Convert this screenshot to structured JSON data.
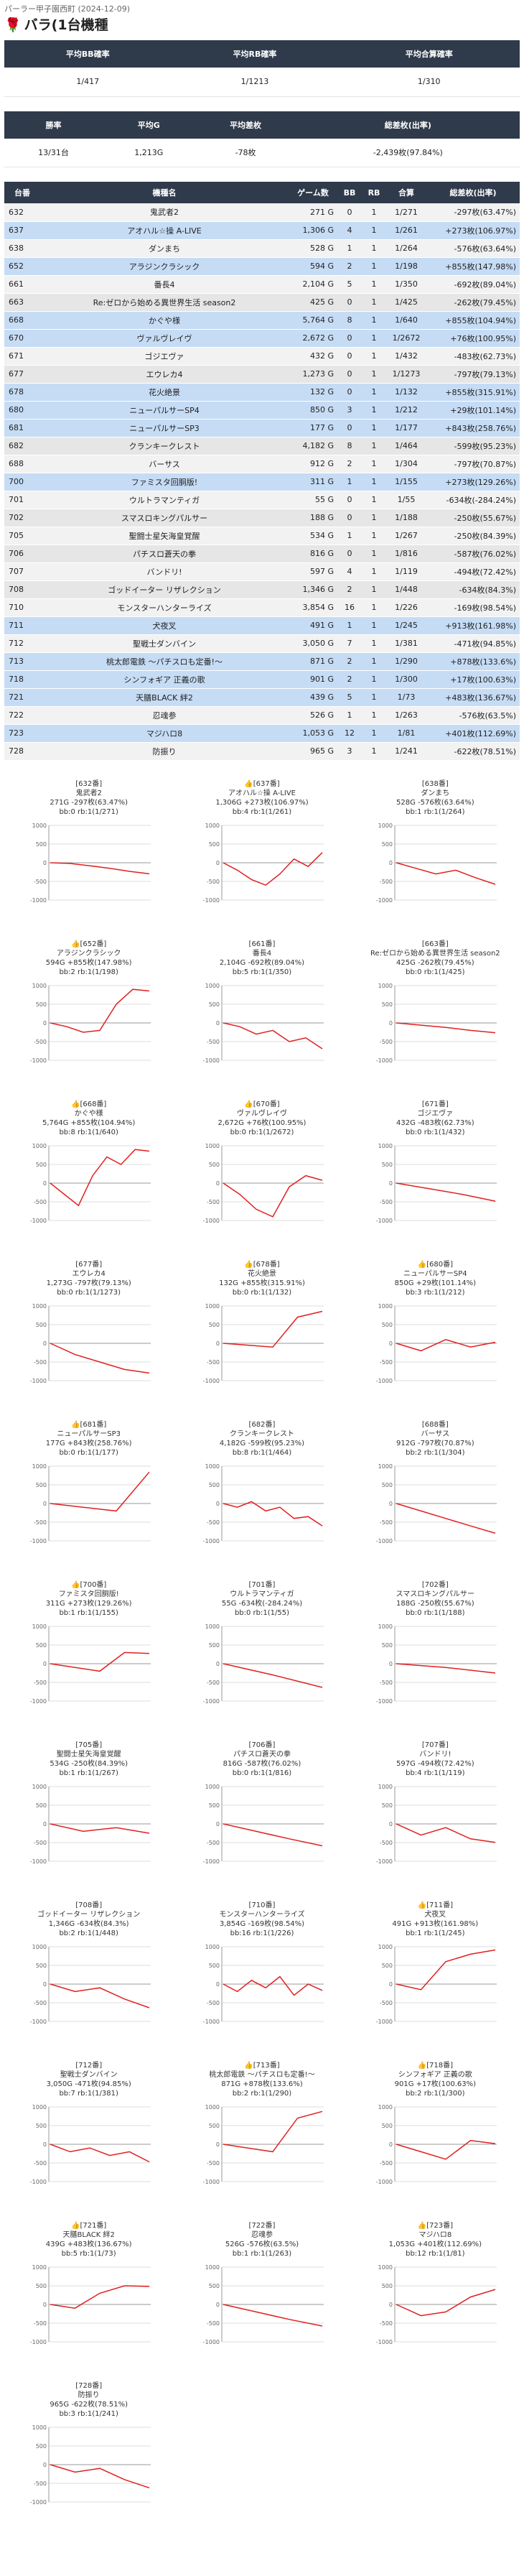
{
  "header": {
    "breadcrumb": "パーラー甲子園西町 (2024-12-09)",
    "title": "バラ(1台機種"
  },
  "summary1": {
    "headers": [
      "平均BB確率",
      "平均RB確率",
      "平均合算確率"
    ],
    "values": [
      "1/417",
      "1/1213",
      "1/310"
    ]
  },
  "summary2": {
    "headers": [
      "勝率",
      "平均G",
      "平均差枚",
      "総差枚(出率)"
    ],
    "values": [
      "13/31台",
      "1,213G",
      "-78枚",
      "-2,439枚(97.84%)"
    ]
  },
  "table": {
    "headers": [
      "台番",
      "機種名",
      "ゲーム数",
      "BB",
      "RB",
      "合算",
      "総差枚(出率)"
    ],
    "rows": [
      {
        "no": "632",
        "name": "鬼武者2",
        "games": "271 G",
        "bb": "0",
        "rb": "1",
        "prob": "1/271",
        "diff": "-297枚(63.47%)",
        "hl": false
      },
      {
        "no": "637",
        "name": "アオハル☆操 A-LIVE",
        "games": "1,306 G",
        "bb": "4",
        "rb": "1",
        "prob": "1/261",
        "diff": "+273枚(106.97%)",
        "hl": true
      },
      {
        "no": "638",
        "name": "ダンまち",
        "games": "528 G",
        "bb": "1",
        "rb": "1",
        "prob": "1/264",
        "diff": "-576枚(63.64%)",
        "hl": false
      },
      {
        "no": "652",
        "name": "アラジンクラシック",
        "games": "594 G",
        "bb": "2",
        "rb": "1",
        "prob": "1/198",
        "diff": "+855枚(147.98%)",
        "hl": true
      },
      {
        "no": "661",
        "name": "番長4",
        "games": "2,104 G",
        "bb": "5",
        "rb": "1",
        "prob": "1/350",
        "diff": "-692枚(89.04%)",
        "hl": false
      },
      {
        "no": "663",
        "name": "Re:ゼロから始める異世界生活 season2",
        "games": "425 G",
        "bb": "0",
        "rb": "1",
        "prob": "1/425",
        "diff": "-262枚(79.45%)",
        "hl": false
      },
      {
        "no": "668",
        "name": "かぐや様",
        "games": "5,764 G",
        "bb": "8",
        "rb": "1",
        "prob": "1/640",
        "diff": "+855枚(104.94%)",
        "hl": true
      },
      {
        "no": "670",
        "name": "ヴァルヴレイヴ",
        "games": "2,672 G",
        "bb": "0",
        "rb": "1",
        "prob": "1/2672",
        "diff": "+76枚(100.95%)",
        "hl": true
      },
      {
        "no": "671",
        "name": "ゴジエヴァ",
        "games": "432 G",
        "bb": "0",
        "rb": "1",
        "prob": "1/432",
        "diff": "-483枚(62.73%)",
        "hl": false
      },
      {
        "no": "677",
        "name": "エウレカ4",
        "games": "1,273 G",
        "bb": "0",
        "rb": "1",
        "prob": "1/1273",
        "diff": "-797枚(79.13%)",
        "hl": false
      },
      {
        "no": "678",
        "name": "花火絶景",
        "games": "132 G",
        "bb": "0",
        "rb": "1",
        "prob": "1/132",
        "diff": "+855枚(315.91%)",
        "hl": true
      },
      {
        "no": "680",
        "name": "ニューパルサーSP4",
        "games": "850 G",
        "bb": "3",
        "rb": "1",
        "prob": "1/212",
        "diff": "+29枚(101.14%)",
        "hl": true
      },
      {
        "no": "681",
        "name": "ニューパルサーSP3",
        "games": "177 G",
        "bb": "0",
        "rb": "1",
        "prob": "1/177",
        "diff": "+843枚(258.76%)",
        "hl": true
      },
      {
        "no": "682",
        "name": "クランキークレスト",
        "games": "4,182 G",
        "bb": "8",
        "rb": "1",
        "prob": "1/464",
        "diff": "-599枚(95.23%)",
        "hl": false
      },
      {
        "no": "688",
        "name": "バーサス",
        "games": "912 G",
        "bb": "2",
        "rb": "1",
        "prob": "1/304",
        "diff": "-797枚(70.87%)",
        "hl": false
      },
      {
        "no": "700",
        "name": "ファミスタ回胴版!",
        "games": "311 G",
        "bb": "1",
        "rb": "1",
        "prob": "1/155",
        "diff": "+273枚(129.26%)",
        "hl": true
      },
      {
        "no": "701",
        "name": "ウルトラマンティガ",
        "games": "55 G",
        "bb": "0",
        "rb": "1",
        "prob": "1/55",
        "diff": "-634枚(-284.24%)",
        "hl": false
      },
      {
        "no": "702",
        "name": "スマスロキングパルサー",
        "games": "188 G",
        "bb": "0",
        "rb": "1",
        "prob": "1/188",
        "diff": "-250枚(55.67%)",
        "hl": false
      },
      {
        "no": "705",
        "name": "聖闘士星矢海皇覚醒",
        "games": "534 G",
        "bb": "1",
        "rb": "1",
        "prob": "1/267",
        "diff": "-250枚(84.39%)",
        "hl": false
      },
      {
        "no": "706",
        "name": "パチスロ蒼天の拳",
        "games": "816 G",
        "bb": "0",
        "rb": "1",
        "prob": "1/816",
        "diff": "-587枚(76.02%)",
        "hl": false
      },
      {
        "no": "707",
        "name": "バンドリ!",
        "games": "597 G",
        "bb": "4",
        "rb": "1",
        "prob": "1/119",
        "diff": "-494枚(72.42%)",
        "hl": false
      },
      {
        "no": "708",
        "name": "ゴッドイーター リザレクション",
        "games": "1,346 G",
        "bb": "2",
        "rb": "1",
        "prob": "1/448",
        "diff": "-634枚(84.3%)",
        "hl": false
      },
      {
        "no": "710",
        "name": "モンスターハンターライズ",
        "games": "3,854 G",
        "bb": "16",
        "rb": "1",
        "prob": "1/226",
        "diff": "-169枚(98.54%)",
        "hl": false
      },
      {
        "no": "711",
        "name": "犬夜叉",
        "games": "491 G",
        "bb": "1",
        "rb": "1",
        "prob": "1/245",
        "diff": "+913枚(161.98%)",
        "hl": true
      },
      {
        "no": "712",
        "name": "聖戦士ダンバイン",
        "games": "3,050 G",
        "bb": "7",
        "rb": "1",
        "prob": "1/381",
        "diff": "-471枚(94.85%)",
        "hl": false
      },
      {
        "no": "713",
        "name": "桃太郎電鉄 〜パチスロも定番!〜",
        "games": "871 G",
        "bb": "2",
        "rb": "1",
        "prob": "1/290",
        "diff": "+878枚(133.6%)",
        "hl": true
      },
      {
        "no": "718",
        "name": "シンフォギア 正義の歌",
        "games": "901 G",
        "bb": "2",
        "rb": "1",
        "prob": "1/300",
        "diff": "+17枚(100.63%)",
        "hl": true
      },
      {
        "no": "721",
        "name": "天膳BLACK 絆2",
        "games": "439 G",
        "bb": "5",
        "rb": "1",
        "prob": "1/73",
        "diff": "+483枚(136.67%)",
        "hl": true
      },
      {
        "no": "722",
        "name": "忍魂参",
        "games": "526 G",
        "bb": "1",
        "rb": "1",
        "prob": "1/263",
        "diff": "-576枚(63.5%)",
        "hl": false
      },
      {
        "no": "723",
        "name": "マジハロ8",
        "games": "1,053 G",
        "bb": "12",
        "rb": "1",
        "prob": "1/81",
        "diff": "+401枚(112.69%)",
        "hl": true
      },
      {
        "no": "728",
        "name": "防振り",
        "games": "965 G",
        "bb": "3",
        "rb": "1",
        "prob": "1/241",
        "diff": "-622枚(78.51%)",
        "hl": false
      }
    ]
  },
  "cards": [
    {
      "head": "[632番]",
      "name": "鬼武者2",
      "stats": "271G -297枚(63.47%)",
      "bb": "bb:0 rb:1(1/271)",
      "plus": false,
      "pts": [
        0,
        -20,
        -80,
        -150,
        -230,
        -297
      ]
    },
    {
      "head": "[637番]",
      "name": "アオハル☆操 A-LIVE",
      "stats": "1,306G +273枚(106.97%)",
      "bb": "bb:4 rb:1(1/261)",
      "plus": true,
      "pts": [
        0,
        -200,
        -450,
        -600,
        -300,
        100,
        -100,
        273
      ]
    },
    {
      "head": "[638番]",
      "name": "ダンまち",
      "stats": "528G -576枚(63.64%)",
      "bb": "bb:1 rb:1(1/264)",
      "plus": false,
      "pts": [
        0,
        -150,
        -300,
        -200,
        -400,
        -576
      ]
    },
    {
      "head": "[652番]",
      "name": "アラジンクラシック",
      "stats": "594G +855枚(147.98%)",
      "bb": "bb:2 rb:1(1/198)",
      "plus": true,
      "pts": [
        0,
        -100,
        -250,
        -200,
        500,
        900,
        855
      ]
    },
    {
      "head": "[661番]",
      "name": "番長4",
      "stats": "2,104G -692枚(89.04%)",
      "bb": "bb:5 rb:1(1/350)",
      "plus": false,
      "pts": [
        0,
        -100,
        -300,
        -200,
        -500,
        -400,
        -692
      ]
    },
    {
      "head": "[663番]",
      "name": "Re:ゼロから始める異世界生活 season2",
      "stats": "425G -262枚(79.45%)",
      "bb": "bb:0 rb:1(1/425)",
      "plus": false,
      "pts": [
        0,
        -60,
        -120,
        -200,
        -262
      ]
    },
    {
      "head": "[668番]",
      "name": "かぐや様",
      "stats": "5,764G +855枚(104.94%)",
      "bb": "bb:8 rb:1(1/640)",
      "plus": true,
      "pts": [
        0,
        -300,
        -600,
        200,
        700,
        500,
        900,
        855
      ]
    },
    {
      "head": "[670番]",
      "name": "ヴァルヴレイヴ",
      "stats": "2,672G +76枚(100.95%)",
      "bb": "bb:0 rb:1(1/2672)",
      "plus": true,
      "pts": [
        0,
        -300,
        -700,
        -900,
        -100,
        200,
        76
      ]
    },
    {
      "head": "[671番]",
      "name": "ゴジエヴァ",
      "stats": "432G -483枚(62.73%)",
      "bb": "bb:0 rb:1(1/432)",
      "plus": false,
      "pts": [
        0,
        -150,
        -300,
        -483
      ]
    },
    {
      "head": "[677番]",
      "name": "エウレカ4",
      "stats": "1,273G -797枚(79.13%)",
      "bb": "bb:0 rb:1(1/1273)",
      "plus": false,
      "pts": [
        0,
        -300,
        -500,
        -700,
        -797
      ]
    },
    {
      "head": "[678番]",
      "name": "花火絶景",
      "stats": "132G +855枚(315.91%)",
      "bb": "bb:0 rb:1(1/132)",
      "plus": true,
      "pts": [
        0,
        -50,
        -100,
        700,
        855
      ]
    },
    {
      "head": "[680番]",
      "name": "ニューパルサーSP4",
      "stats": "850G +29枚(101.14%)",
      "bb": "bb:3 rb:1(1/212)",
      "plus": true,
      "pts": [
        0,
        -200,
        100,
        -100,
        29
      ]
    },
    {
      "head": "[681番]",
      "name": "ニューパルサーSP3",
      "stats": "177G +843枚(258.76%)",
      "bb": "bb:0 rb:1(1/177)",
      "plus": true,
      "pts": [
        0,
        -100,
        -200,
        843
      ]
    },
    {
      "head": "[682番]",
      "name": "クランキークレスト",
      "stats": "4,182G -599枚(95.23%)",
      "bb": "bb:8 rb:1(1/464)",
      "plus": false,
      "pts": [
        0,
        -100,
        50,
        -200,
        -100,
        -400,
        -350,
        -599
      ]
    },
    {
      "head": "[688番]",
      "name": "バーサス",
      "stats": "912G -797枚(70.87%)",
      "bb": "bb:2 rb:1(1/304)",
      "plus": false,
      "pts": [
        0,
        -200,
        -400,
        -600,
        -797
      ]
    },
    {
      "head": "[700番]",
      "name": "ファミスタ回胴版!",
      "stats": "311G +273枚(129.26%)",
      "bb": "bb:1 rb:1(1/155)",
      "plus": true,
      "pts": [
        0,
        -100,
        -200,
        300,
        273
      ]
    },
    {
      "head": "[701番]",
      "name": "ウルトラマンティガ",
      "stats": "55G -634枚(-284.24%)",
      "bb": "bb:0 rb:1(1/55)",
      "plus": false,
      "pts": [
        0,
        -300,
        -634
      ]
    },
    {
      "head": "[702番]",
      "name": "スマスロキングパルサー",
      "stats": "188G -250枚(55.67%)",
      "bb": "bb:0 rb:1(1/188)",
      "plus": false,
      "pts": [
        0,
        -100,
        -250
      ]
    },
    {
      "head": "[705番]",
      "name": "聖闘士星矢海皇覚醒",
      "stats": "534G -250枚(84.39%)",
      "bb": "bb:1 rb:1(1/267)",
      "plus": false,
      "pts": [
        0,
        -200,
        -100,
        -250
      ]
    },
    {
      "head": "[706番]",
      "name": "パチスロ蒼天の拳",
      "stats": "816G -587枚(76.02%)",
      "bb": "bb:0 rb:1(1/816)",
      "plus": false,
      "pts": [
        0,
        -200,
        -400,
        -587
      ]
    },
    {
      "head": "[707番]",
      "name": "バンドリ!",
      "stats": "597G -494枚(72.42%)",
      "bb": "bb:4 rb:1(1/119)",
      "plus": false,
      "pts": [
        0,
        -300,
        -100,
        -400,
        -494
      ]
    },
    {
      "head": "[708番]",
      "name": "ゴッドイーター リザレクション",
      "stats": "1,346G -634枚(84.3%)",
      "bb": "bb:2 rb:1(1/448)",
      "plus": false,
      "pts": [
        0,
        -200,
        -100,
        -400,
        -634
      ]
    },
    {
      "head": "[710番]",
      "name": "モンスターハンターライズ",
      "stats": "3,854G -169枚(98.54%)",
      "bb": "bb:16 rb:1(1/226)",
      "plus": false,
      "pts": [
        0,
        -200,
        100,
        -100,
        200,
        -300,
        0,
        -169
      ]
    },
    {
      "head": "[711番]",
      "name": "犬夜叉",
      "stats": "491G +913枚(161.98%)",
      "bb": "bb:1 rb:1(1/245)",
      "plus": true,
      "pts": [
        0,
        -150,
        600,
        800,
        913
      ]
    },
    {
      "head": "[712番]",
      "name": "聖戦士ダンバイン",
      "stats": "3,050G -471枚(94.85%)",
      "bb": "bb:7 rb:1(1/381)",
      "plus": false,
      "pts": [
        0,
        -200,
        -100,
        -300,
        -200,
        -471
      ]
    },
    {
      "head": "[713番]",
      "name": "桃太郎電鉄 〜パチスロも定番!〜",
      "stats": "871G +878枚(133.6%)",
      "bb": "bb:2 rb:1(1/290)",
      "plus": true,
      "pts": [
        0,
        -100,
        -200,
        700,
        878
      ]
    },
    {
      "head": "[718番]",
      "name": "シンフォギア 正義の歌",
      "stats": "901G +17枚(100.63%)",
      "bb": "bb:2 rb:1(1/300)",
      "plus": true,
      "pts": [
        0,
        -200,
        -400,
        100,
        17
      ]
    },
    {
      "head": "[721番]",
      "name": "天膳BLACK 絆2",
      "stats": "439G +483枚(136.67%)",
      "bb": "bb:5 rb:1(1/73)",
      "plus": true,
      "pts": [
        0,
        -100,
        300,
        500,
        483
      ]
    },
    {
      "head": "[722番]",
      "name": "忍魂参",
      "stats": "526G -576枚(63.5%)",
      "bb": "bb:1 rb:1(1/263)",
      "plus": false,
      "pts": [
        0,
        -200,
        -400,
        -576
      ]
    },
    {
      "head": "[723番]",
      "name": "マジハロ8",
      "stats": "1,053G +401枚(112.69%)",
      "bb": "bb:12 rb:1(1/81)",
      "plus": true,
      "pts": [
        0,
        -300,
        -200,
        200,
        401
      ]
    },
    {
      "head": "[728番]",
      "name": "防振り",
      "stats": "965G -622枚(78.51%)",
      "bb": "bb:3 rb:1(1/241)",
      "plus": false,
      "pts": [
        0,
        -200,
        -100,
        -400,
        -622
      ]
    }
  ],
  "chart_axis_labels": [
    "1000",
    "500",
    "0",
    "-500",
    "-1000"
  ]
}
